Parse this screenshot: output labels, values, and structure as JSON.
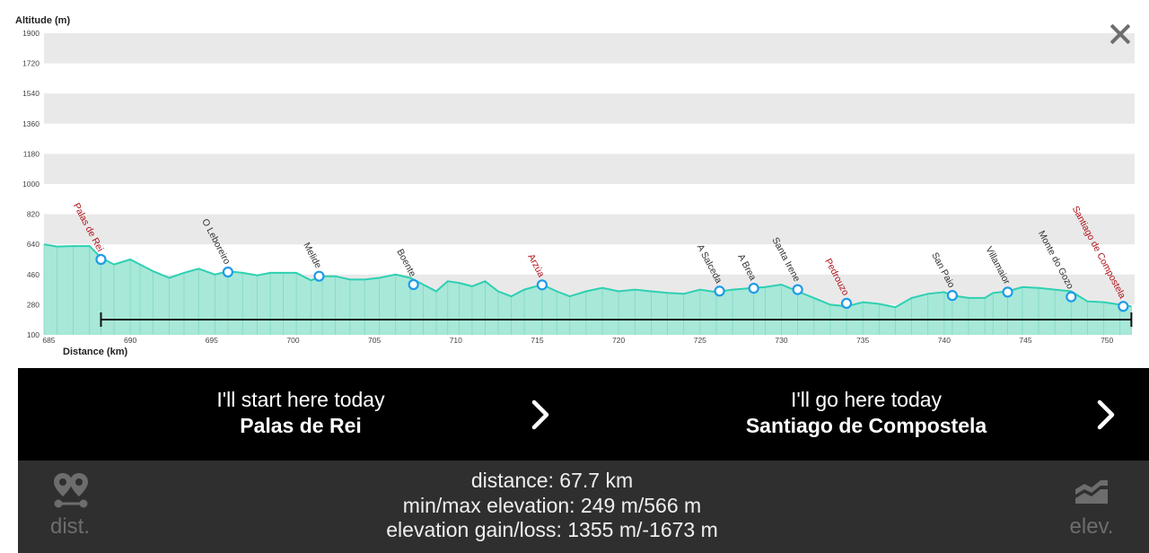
{
  "chart_data": {
    "type": "area",
    "ylabel": "Altitude (m)",
    "xlabel": "Distance (km)",
    "ylim": [
      100,
      1900
    ],
    "xlim": [
      684.7,
      751.7
    ],
    "yticks": [
      100,
      280,
      460,
      640,
      820,
      1000,
      1180,
      1360,
      1540,
      1720,
      1900
    ],
    "xticks": [
      685,
      690,
      695,
      700,
      705,
      710,
      715,
      720,
      725,
      730,
      735,
      740,
      745,
      750
    ],
    "fill_color": "#a8e8d8",
    "line_color": "#2ed0b2",
    "band_color": "#e9e9e9",
    "x": [
      684.7,
      685.5,
      686.5,
      687.5,
      688.2,
      689.0,
      690.0,
      690.6,
      691.4,
      692.4,
      693.3,
      694.2,
      695.2,
      696.0,
      696.9,
      697.8,
      698.6,
      699.4,
      700.2,
      701.1,
      701.8,
      702.6,
      703.5,
      704.4,
      705.3,
      706.3,
      707.2,
      708.0,
      708.8,
      709.5,
      710.2,
      711.0,
      711.8,
      712.6,
      713.4,
      714.2,
      715.3,
      716.2,
      717.0,
      718.0,
      719.0,
      720.0,
      721.0,
      722.0,
      723.0,
      724.0,
      725.0,
      726.0,
      727.0,
      728.3,
      729.0,
      730.0,
      731.0,
      732.0,
      733.0,
      734.0,
      735.0,
      736.0,
      737.0,
      738.0,
      739.0,
      740.0,
      740.5,
      741.5,
      742.5,
      743.0,
      743.9,
      744.8,
      745.8,
      746.8,
      747.8,
      748.8,
      749.8,
      750.8,
      751.5
    ],
    "y": [
      640,
      627,
      630,
      630,
      560,
      520,
      550,
      520,
      480,
      440,
      470,
      495,
      460,
      480,
      470,
      455,
      470,
      470,
      470,
      425,
      450,
      450,
      430,
      430,
      440,
      460,
      440,
      400,
      360,
      420,
      410,
      390,
      420,
      360,
      330,
      370,
      400,
      360,
      330,
      360,
      380,
      360,
      370,
      360,
      350,
      345,
      370,
      355,
      370,
      380,
      385,
      400,
      360,
      320,
      280,
      270,
      295,
      285,
      265,
      320,
      345,
      355,
      335,
      320,
      320,
      350,
      360,
      385,
      380,
      370,
      360,
      300,
      295,
      280,
      270
    ],
    "bar_span": [
      688.2,
      751.5
    ],
    "stops": [
      {
        "name": "Palas de Rei",
        "x": 688.2,
        "y": 550,
        "highlight": true
      },
      {
        "name": "O Leboreiro",
        "x": 696.0,
        "y": 475,
        "highlight": false
      },
      {
        "name": "Melide",
        "x": 701.6,
        "y": 450,
        "highlight": false
      },
      {
        "name": "Boente",
        "x": 707.4,
        "y": 400,
        "highlight": false
      },
      {
        "name": "Arzúa",
        "x": 715.3,
        "y": 398,
        "highlight": true
      },
      {
        "name": "A Salceda",
        "x": 726.2,
        "y": 361,
        "highlight": false
      },
      {
        "name": "A Brea",
        "x": 728.3,
        "y": 378,
        "highlight": false
      },
      {
        "name": "Santa Irene",
        "x": 731.0,
        "y": 370,
        "highlight": false
      },
      {
        "name": "Pedrouzo",
        "x": 734.0,
        "y": 288,
        "highlight": true
      },
      {
        "name": "San Paio",
        "x": 740.5,
        "y": 335,
        "highlight": false
      },
      {
        "name": "Villamaior",
        "x": 743.9,
        "y": 355,
        "highlight": false
      },
      {
        "name": "Monte do Gozo",
        "x": 747.8,
        "y": 327,
        "highlight": false
      },
      {
        "name": "Santiago de Compostela",
        "x": 751.0,
        "y": 270,
        "highlight": true
      }
    ]
  },
  "start": {
    "label": "I'll start here today",
    "value": "Palas de Rei"
  },
  "destination": {
    "label": "I'll go here today",
    "value": "Santiago de Compostela"
  },
  "stats": {
    "distance": "distance: 67.7 km",
    "elevation": "min/max elevation: 249 m/566 m",
    "gain_loss": "elevation gain/loss: 1355 m/-1673 m"
  },
  "tools": {
    "dist": {
      "label": "dist.",
      "icon": "map-pins-icon"
    },
    "elev": {
      "label": "elev.",
      "icon": "elevation-icon"
    }
  },
  "close_icon": "close-icon"
}
